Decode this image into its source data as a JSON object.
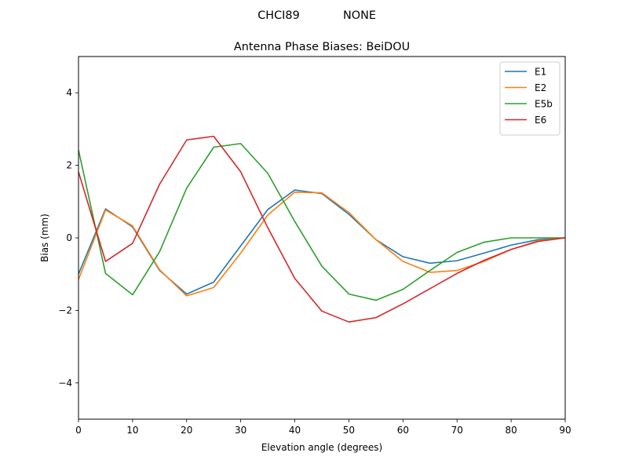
{
  "suptitle": {
    "left": "CHCI89",
    "right": "NONE"
  },
  "chart_data": {
    "type": "line",
    "title": "Antenna Phase Biases: BeiDOU",
    "xlabel": "Elevation angle (degrees)",
    "ylabel": "Bias (mm)",
    "xlim": [
      0,
      90
    ],
    "ylim": [
      -5,
      5
    ],
    "xticks": [
      0,
      10,
      20,
      30,
      40,
      50,
      60,
      70,
      80,
      90
    ],
    "yticks": [
      -4,
      -2,
      0,
      2,
      4
    ],
    "ytick_labels": [
      "−4",
      "−2",
      "0",
      "2",
      "4"
    ],
    "grid": false,
    "legend_position": "top-right",
    "x": [
      0,
      5,
      10,
      15,
      20,
      25,
      30,
      35,
      40,
      45,
      50,
      55,
      60,
      65,
      70,
      75,
      80,
      85,
      90
    ],
    "series": [
      {
        "name": "E1",
        "color": "#1f77b4",
        "values": [
          -1.0,
          0.8,
          0.3,
          -0.9,
          -1.55,
          -1.22,
          -0.22,
          0.78,
          1.32,
          1.22,
          0.65,
          -0.05,
          -0.52,
          -0.7,
          -0.63,
          -0.42,
          -0.2,
          -0.05,
          0.0
        ]
      },
      {
        "name": "E2",
        "color": "#ff7f0e",
        "values": [
          -1.15,
          0.77,
          0.33,
          -0.88,
          -1.6,
          -1.37,
          -0.42,
          0.63,
          1.26,
          1.24,
          0.7,
          -0.05,
          -0.65,
          -0.95,
          -0.9,
          -0.65,
          -0.32,
          -0.08,
          0.0
        ]
      },
      {
        "name": "E5b",
        "color": "#2ca02c",
        "values": [
          2.42,
          -0.98,
          -1.57,
          -0.38,
          1.37,
          2.5,
          2.6,
          1.78,
          0.45,
          -0.78,
          -1.55,
          -1.72,
          -1.42,
          -0.9,
          -0.4,
          -0.12,
          0.0,
          0.0,
          0.0
        ]
      },
      {
        "name": "E6",
        "color": "#d62728",
        "values": [
          1.82,
          -0.65,
          -0.15,
          1.48,
          2.7,
          2.8,
          1.82,
          0.28,
          -1.12,
          -2.02,
          -2.32,
          -2.2,
          -1.82,
          -1.4,
          -0.98,
          -0.62,
          -0.32,
          -0.1,
          0.0
        ]
      }
    ]
  }
}
